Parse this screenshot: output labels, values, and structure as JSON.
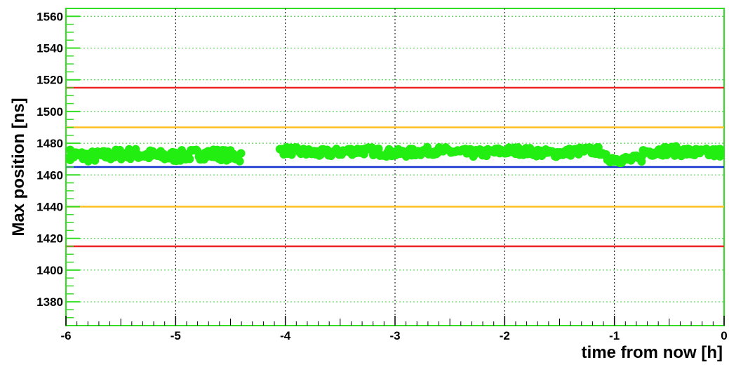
{
  "chart_data": {
    "type": "scatter",
    "xlabel": "time from now [h]",
    "ylabel": "Max position [ns]",
    "xlim": [
      -6,
      0
    ],
    "ylim": [
      1365,
      1565
    ],
    "grid": true,
    "x_ticks": [
      "-6",
      "-5",
      "-4",
      "-3",
      "-2",
      "-1",
      "0"
    ],
    "y_ticks": [
      "1380",
      "1400",
      "1420",
      "1440",
      "1460",
      "1480",
      "1500",
      "1520",
      "1540",
      "1560"
    ],
    "reference_lines": [
      {
        "y": 1515,
        "color": "#ee2222"
      },
      {
        "y": 1490,
        "color": "#ffc020"
      },
      {
        "y": 1465,
        "color": "#1030d0"
      },
      {
        "y": 1440,
        "color": "#ffc020"
      },
      {
        "y": 1415,
        "color": "#ee2222"
      }
    ],
    "series": [
      {
        "color": "#22ee11",
        "segments": [
          {
            "x_start": -6.0,
            "x_end": -4.4,
            "y_base": 1472.5,
            "y_amp": 3.5
          },
          {
            "x_start": -4.05,
            "x_end": -1.1,
            "y_base": 1474.5,
            "y_amp": 2.5
          },
          {
            "x_start": -1.1,
            "x_end": -0.75,
            "y_base": 1470.5,
            "y_amp": 2.5
          },
          {
            "x_start": -0.75,
            "x_end": 0.0,
            "y_base": 1474.5,
            "y_amp": 3.0
          }
        ]
      }
    ]
  }
}
